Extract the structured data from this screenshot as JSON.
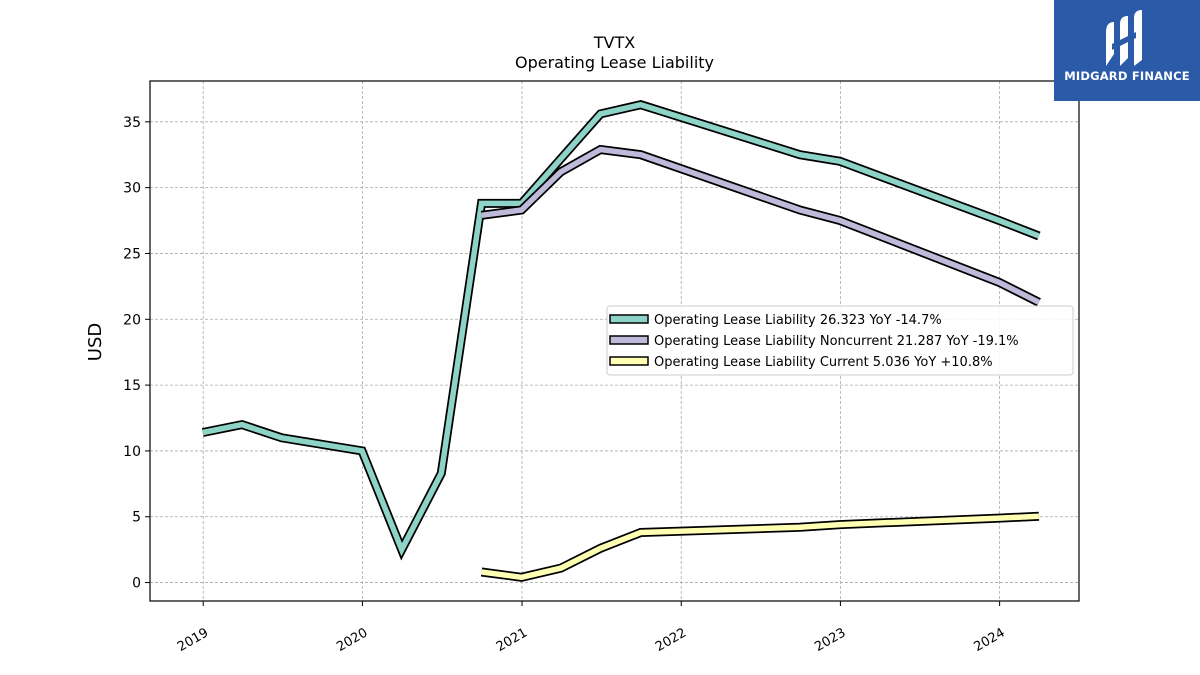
{
  "brand": {
    "name": "MIDGARD FINANCE",
    "bg_color": "#2b5aa8"
  },
  "chart_data": {
    "type": "line",
    "title": "TVTX",
    "subtitle": "Operating Lease Liability",
    "xlabel": "",
    "ylabel": "USD",
    "xlim": [
      "2018-09-01",
      "2024-07-01"
    ],
    "ylim": [
      -1.4,
      38.1
    ],
    "x_ticks": [
      "2019",
      "2020",
      "2021",
      "2022",
      "2023",
      "2024"
    ],
    "y_ticks": [
      0,
      5,
      10,
      15,
      20,
      25,
      30,
      35
    ],
    "grid": true,
    "legend_position": "center-right",
    "series": [
      {
        "name": "Operating Lease Liability",
        "legend_label": "Operating Lease Liability  26.323 YoY -14.7%",
        "color": "#8dd3c7",
        "points": [
          [
            "2018-12-31",
            11.4
          ],
          [
            "2019-03-31",
            12.0
          ],
          [
            "2019-06-30",
            11.0
          ],
          [
            "2019-12-31",
            10.0
          ],
          [
            "2020-03-31",
            2.5
          ],
          [
            "2020-06-30",
            8.3
          ],
          [
            "2020-09-30",
            28.8
          ],
          [
            "2020-12-31",
            28.8
          ],
          [
            "2021-03-31",
            32.2
          ],
          [
            "2021-06-30",
            35.6
          ],
          [
            "2021-09-30",
            36.3
          ],
          [
            "2022-09-30",
            32.5
          ],
          [
            "2022-12-31",
            32.0
          ],
          [
            "2023-12-31",
            27.5
          ],
          [
            "2024-03-31",
            26.323
          ]
        ]
      },
      {
        "name": "Operating Lease Liability Noncurrent",
        "legend_label": "Operating Lease Liability Noncurrent  21.287 YoY -19.1%",
        "color": "#bebada",
        "points": [
          [
            "2020-09-30",
            27.9
          ],
          [
            "2020-12-31",
            28.3
          ],
          [
            "2021-03-31",
            31.2
          ],
          [
            "2021-06-30",
            32.9
          ],
          [
            "2021-09-30",
            32.5
          ],
          [
            "2022-09-30",
            28.3
          ],
          [
            "2022-12-31",
            27.5
          ],
          [
            "2023-12-31",
            22.8
          ],
          [
            "2024-03-31",
            21.287
          ]
        ]
      },
      {
        "name": "Operating Lease Liability Current",
        "legend_label": "Operating Lease Liability Current  5.036 YoY +10.8%",
        "color": "#ffffb3",
        "points": [
          [
            "2020-09-30",
            0.8
          ],
          [
            "2020-12-31",
            0.4
          ],
          [
            "2021-03-31",
            1.1
          ],
          [
            "2021-06-30",
            2.6
          ],
          [
            "2021-09-30",
            3.8
          ],
          [
            "2022-09-30",
            4.2
          ],
          [
            "2022-12-31",
            4.4
          ],
          [
            "2023-12-31",
            4.9
          ],
          [
            "2024-03-31",
            5.036
          ]
        ]
      }
    ]
  }
}
